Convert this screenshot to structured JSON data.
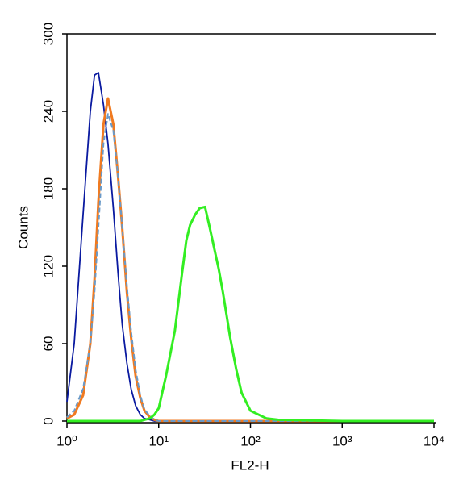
{
  "chart_data": {
    "type": "line",
    "x_label": "FL2-H",
    "y_label": "Counts",
    "xscale": "log",
    "x": [
      1,
      1.2,
      1.5,
      1.8,
      2,
      2.2,
      2.5,
      2.8,
      3.2,
      3.6,
      4,
      4.5,
      5,
      5.6,
      6.3,
      7,
      8,
      9,
      10,
      12,
      15,
      18,
      20,
      22,
      25,
      28,
      32,
      36,
      40,
      45,
      50,
      60,
      70,
      80,
      100,
      150,
      200,
      1000,
      10000
    ],
    "series": [
      {
        "color": "#0a1aa0",
        "values": [
          15,
          60,
          160,
          240,
          268,
          270,
          245,
          215,
          165,
          115,
          75,
          45,
          25,
          12,
          5,
          2,
          1,
          0,
          0,
          0,
          0,
          0,
          0,
          0,
          0,
          0,
          0,
          0,
          0,
          0,
          0,
          0,
          0,
          0,
          0,
          0,
          0,
          0,
          0
        ]
      },
      {
        "color": "#6a9ac8",
        "values": [
          3,
          8,
          25,
          60,
          100,
          150,
          215,
          238,
          225,
          190,
          150,
          105,
          70,
          40,
          20,
          9,
          4,
          1,
          0,
          0,
          0,
          0,
          0,
          0,
          0,
          0,
          0,
          0,
          0,
          0,
          0,
          0,
          0,
          0,
          0,
          0,
          0,
          0,
          0
        ]
      },
      {
        "color": "#f07a20",
        "values": [
          2,
          5,
          20,
          60,
          110,
          170,
          230,
          250,
          230,
          190,
          150,
          100,
          65,
          35,
          18,
          8,
          3,
          1,
          0,
          0,
          0,
          0,
          0,
          0,
          0,
          0,
          0,
          0,
          0,
          0,
          0,
          0,
          0,
          0,
          0,
          0,
          0,
          0,
          0
        ]
      },
      {
        "color": "#33ee22",
        "values": [
          0,
          0,
          0,
          0,
          0,
          0,
          0,
          0,
          0,
          0,
          0,
          0,
          0,
          0,
          0,
          1,
          2,
          5,
          10,
          35,
          70,
          115,
          140,
          152,
          160,
          165,
          166,
          150,
          135,
          118,
          100,
          65,
          40,
          22,
          8,
          2,
          1,
          0,
          0
        ]
      }
    ],
    "xlim": [
      1,
      10000
    ],
    "xticks": [
      {
        "value": 1,
        "label": "10⁰"
      },
      {
        "value": 10,
        "label": "10¹"
      },
      {
        "value": 100,
        "label": "10²"
      },
      {
        "value": 1000,
        "label": "10³"
      },
      {
        "value": 10000,
        "label": "10⁴"
      }
    ],
    "ylim": [
      0,
      300
    ],
    "yticks": [
      0,
      60,
      120,
      180,
      240,
      300
    ]
  }
}
